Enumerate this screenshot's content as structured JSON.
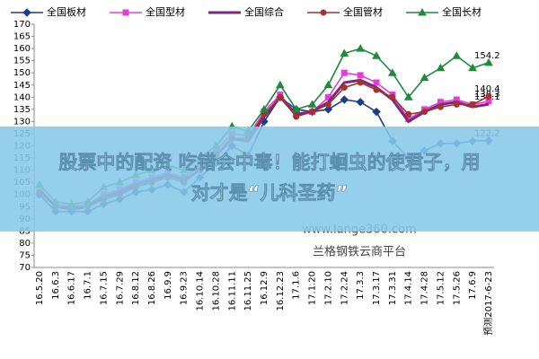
{
  "chart_data": {
    "type": "line",
    "categories": [
      "16.5.20",
      "16.6.3",
      "16.6.17",
      "16.7.1",
      "16.7.15",
      "16.7.29",
      "16.8.12",
      "16.8.26",
      "16.9.9",
      "16.9.23",
      "16.10.14",
      "16.10.28",
      "16.11.11",
      "16.11.25",
      "16.12.9",
      "16.12.23",
      "17.1.6",
      "17.1.20",
      "17.2.10",
      "17.2.24",
      "17.3.3",
      "17.3.17",
      "17.3.31",
      "17.4.14",
      "17.4.28",
      "17.5.12",
      "17.5.26",
      "17.6.9",
      "预测2017-6-23"
    ],
    "series": [
      {
        "name": "全国板材",
        "color": "#1f3c88",
        "marker": "diamond",
        "values": [
          100,
          93,
          93,
          93,
          96,
          98,
          101,
          102,
          104,
          101,
          107,
          113,
          120,
          116,
          130,
          140,
          135,
          134,
          135,
          139,
          138,
          134,
          122,
          115,
          118,
          121,
          121,
          122,
          122.2
        ]
      },
      {
        "name": "全国型材",
        "color": "#e23fd6",
        "marker": "square",
        "values": [
          101,
          96,
          95,
          96,
          100,
          102,
          105,
          107,
          109,
          107,
          112,
          118,
          125,
          124,
          134,
          141,
          133,
          134,
          140,
          150,
          149,
          146,
          141,
          131,
          135,
          138,
          139,
          137,
          138.3
        ]
      },
      {
        "name": "全国综合",
        "color": "#7a2a7c",
        "marker": "none",
        "values": [
          102,
          95,
          94,
          95,
          99,
          101,
          104,
          106,
          108,
          106,
          110,
          116,
          123,
          122,
          132,
          140,
          133,
          134,
          138,
          146,
          147,
          144,
          139,
          130,
          134,
          137,
          138,
          136,
          137.1
        ]
      },
      {
        "name": "全国管材",
        "color": "#a3332c",
        "marker": "circle",
        "values": [
          101,
          95,
          95,
          95,
          98,
          100,
          103,
          105,
          107,
          105,
          110,
          116,
          123,
          123,
          133,
          140,
          132,
          134,
          137,
          144,
          146,
          143,
          140,
          133,
          134,
          136,
          137,
          137,
          140.4
        ]
      },
      {
        "name": "全国长材",
        "color": "#1e8a3c",
        "marker": "triangle",
        "values": [
          104,
          97,
          96,
          97,
          103,
          105,
          108,
          110,
          112,
          110,
          115,
          120,
          128,
          126,
          135,
          145,
          135,
          137,
          145,
          158,
          160,
          157,
          150,
          140,
          148,
          152,
          157,
          152,
          154.2
        ]
      }
    ],
    "ylim": [
      70,
      170
    ],
    "yticks": [
      70,
      75,
      80,
      85,
      90,
      95,
      100,
      105,
      110,
      115,
      120,
      125,
      130,
      135,
      140,
      145,
      150,
      155,
      160,
      165,
      170
    ],
    "grid": false
  },
  "overlay": {
    "banner": [
      "股票中的配资 吃错会中毒！能打蛔虫的使君子，用",
      "对才是“儿科圣药”"
    ],
    "watermark": [
      "www.lange360.com",
      "兰格钢铁云商平台"
    ]
  }
}
